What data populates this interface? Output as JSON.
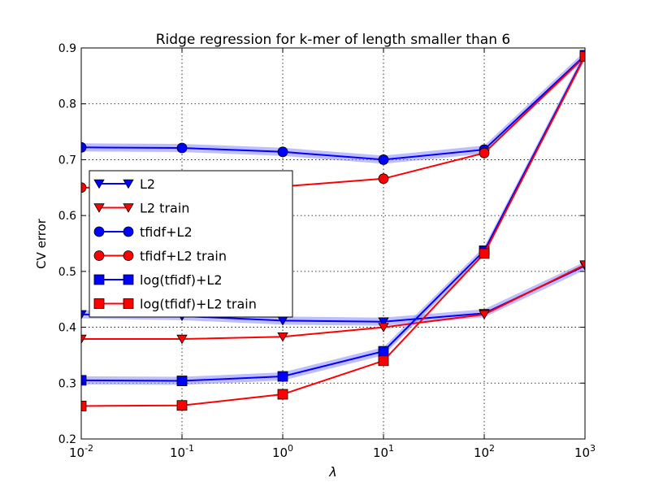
{
  "chart_data": {
    "type": "line",
    "title": "Ridge regression for k-mer of length smaller than 6",
    "xlabel": "λ",
    "ylabel": "CV error",
    "xscale": "log",
    "x": [
      0.01,
      0.1,
      1,
      10,
      100,
      1000
    ],
    "x_tick_labels": [
      {
        "base": "10",
        "exp": "-2"
      },
      {
        "base": "10",
        "exp": "-1"
      },
      {
        "base": "10",
        "exp": "0"
      },
      {
        "base": "10",
        "exp": "1"
      },
      {
        "base": "10",
        "exp": "2"
      },
      {
        "base": "10",
        "exp": "3"
      }
    ],
    "ylim": [
      0.2,
      0.9
    ],
    "y_ticks": [
      0.2,
      0.3,
      0.4,
      0.5,
      0.6,
      0.7,
      0.8,
      0.9
    ],
    "y_tick_labels": [
      "0.2",
      "0.3",
      "0.4",
      "0.5",
      "0.6",
      "0.7",
      "0.8",
      "0.9"
    ],
    "grid": true,
    "legend_position": "center-left",
    "series": [
      {
        "name": "L2",
        "color": "#0000ff",
        "marker": "triangle-down",
        "band": true,
        "values": [
          0.423,
          0.42,
          0.412,
          0.41,
          0.425,
          0.51
        ]
      },
      {
        "name": "L2 train",
        "color": "#ff0000",
        "marker": "triangle-down",
        "band": false,
        "values": [
          0.379,
          0.379,
          0.383,
          0.4,
          0.423,
          0.512
        ]
      },
      {
        "name": "tfidf+L2",
        "color": "#0000ff",
        "marker": "circle",
        "band": true,
        "values": [
          0.722,
          0.721,
          0.714,
          0.7,
          0.718,
          0.887
        ]
      },
      {
        "name": "tfidf+L2 train",
        "color": "#ff0000",
        "marker": "circle",
        "band": false,
        "values": [
          0.65,
          0.649,
          0.652,
          0.666,
          0.712,
          0.885
        ]
      },
      {
        "name": "log(tfidf)+L2",
        "color": "#0000ff",
        "marker": "square",
        "band": true,
        "values": [
          0.305,
          0.304,
          0.312,
          0.357,
          0.537,
          0.887
        ]
      },
      {
        "name": "log(tfidf)+L2 train",
        "color": "#ff0000",
        "marker": "square",
        "band": false,
        "values": [
          0.259,
          0.26,
          0.28,
          0.34,
          0.532,
          0.885
        ]
      }
    ]
  }
}
